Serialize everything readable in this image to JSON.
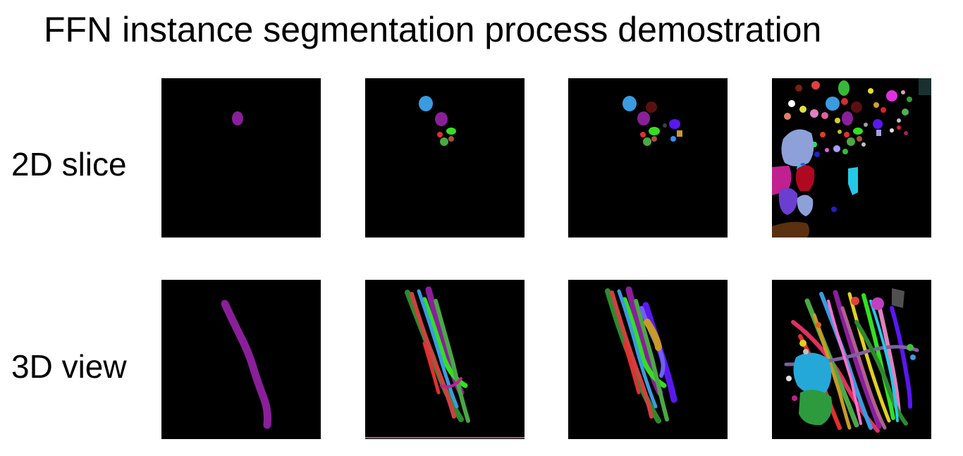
{
  "title": "FFN instance segmentation process demostration",
  "rows": [
    {
      "label": "2D slice"
    },
    {
      "label": "3D view"
    }
  ],
  "colors": {
    "background": "#ffffff",
    "panel_background": "#000000",
    "segment_palette": [
      "#8a1f9a",
      "#3a9be0",
      "#33e022",
      "#e03030",
      "#4aa845",
      "#5a1010",
      "#5a18f0",
      "#c89a28",
      "#3a8ef0",
      "#8da0d8",
      "#b00820",
      "#24c8e8",
      "#6a3ed0",
      "#c02090",
      "#5a3010"
    ]
  }
}
